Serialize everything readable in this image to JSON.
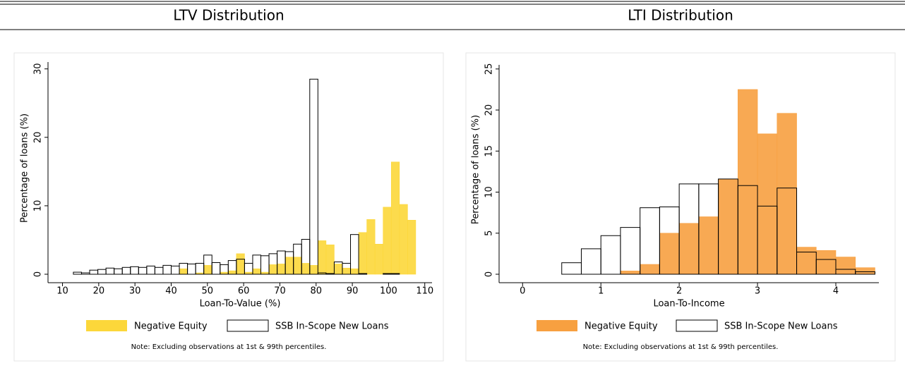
{
  "chart_data": [
    {
      "type": "histogram",
      "title": "LTV Distribution",
      "xlabel": "Loan-To-Value (%)",
      "ylabel": "Percentage of loans (%)",
      "note": "Note: Excluding observations at 1st & 99th percentiles.",
      "bins": [
        13,
        15.25,
        17.5,
        19.75,
        22,
        24.25,
        26.5,
        28.75,
        31,
        33.25,
        35.5,
        37.75,
        40,
        42.25,
        44.5,
        46.75,
        49,
        51.25,
        53.5,
        55.75,
        58,
        60.25,
        62.5,
        64.75,
        67,
        69.25,
        71.5,
        73.75,
        76,
        78.25,
        80.5,
        82.75,
        85,
        87.25,
        89.5,
        91.75,
        94,
        96.25,
        98.5,
        100.75,
        103,
        105.25,
        107.5
      ],
      "series": [
        {
          "name": "Negative Equity",
          "color": "#fcd73a",
          "fill": true,
          "values": [
            0,
            0,
            0,
            0,
            0,
            0,
            0,
            0,
            0,
            0,
            0,
            0,
            0,
            0.8,
            0,
            0.2,
            1.3,
            0,
            0.3,
            0.5,
            3.0,
            0.3,
            0.8,
            0.3,
            1.4,
            1.5,
            2.5,
            2.5,
            1.6,
            1.3,
            4.9,
            4.3,
            1.5,
            0.9,
            0.8,
            6.1,
            8.0,
            4.4,
            9.8,
            16.4,
            10.2,
            7.9
          ]
        },
        {
          "name": "SSB In-Scope New Loans",
          "color": "#000000",
          "fill": false,
          "values": [
            0.3,
            0.2,
            0.6,
            0.7,
            0.9,
            0.8,
            1.0,
            1.1,
            1.0,
            1.2,
            1.0,
            1.3,
            1.2,
            1.6,
            1.5,
            1.6,
            2.8,
            1.7,
            1.4,
            2.0,
            2.2,
            1.6,
            2.8,
            2.7,
            3.0,
            3.4,
            3.3,
            4.4,
            5.1,
            28.5,
            0.2,
            0.1,
            1.8,
            1.6,
            5.8,
            0.1,
            0,
            0,
            0.1,
            0.1,
            0,
            0
          ]
        }
      ],
      "xlim": [
        6,
        112
      ],
      "ylim": [
        0,
        31
      ],
      "xticks": [
        10,
        20,
        30,
        40,
        50,
        60,
        70,
        80,
        90,
        100,
        110
      ],
      "yticks": [
        0,
        10,
        20,
        30
      ]
    },
    {
      "type": "histogram",
      "title": "LTI Distribution",
      "xlabel": "Loan-To-Income",
      "ylabel": "Percentage of loans (%)",
      "note": "Note: Excluding observations at 1st & 99th percentiles.",
      "bins": [
        0.5,
        0.75,
        1,
        1.25,
        1.5,
        1.75,
        2,
        2.25,
        2.5,
        2.75,
        3,
        3.25,
        3.5,
        3.75,
        4,
        4.25,
        4.5
      ],
      "series": [
        {
          "name": "Negative Equity",
          "color": "#f7a040",
          "fill": true,
          "values": [
            0,
            0,
            0,
            0.4,
            1.2,
            5.0,
            6.2,
            7.0,
            11.6,
            22.5,
            17.1,
            19.6,
            3.3,
            2.9,
            2.1,
            0.8
          ]
        },
        {
          "name": "SSB In-Scope New Loans",
          "color": "#000000",
          "fill": false,
          "values": [
            1.4,
            3.1,
            4.7,
            5.7,
            8.1,
            8.2,
            11.0,
            11.0,
            11.6,
            10.8,
            8.3,
            10.5,
            2.7,
            1.8,
            0.6,
            0.3
          ]
        }
      ],
      "xlim": [
        -0.3,
        4.55
      ],
      "ylim": [
        0,
        25.5
      ],
      "xticks": [
        0,
        1,
        2,
        3,
        4
      ],
      "yticks": [
        0,
        5,
        10,
        15,
        20,
        25
      ]
    }
  ]
}
